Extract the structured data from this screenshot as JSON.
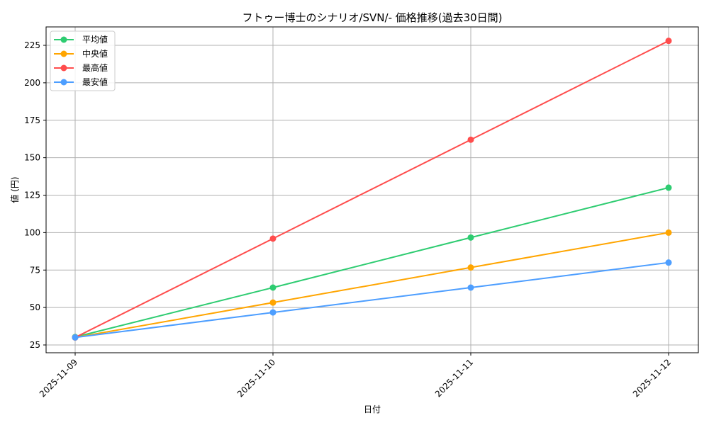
{
  "chart_data": {
    "type": "line",
    "title": "フトゥー博士のシナリオ/SVN/- 価格推移(過去30日間)",
    "xlabel": "日付",
    "ylabel": "値 (円)",
    "categories": [
      "2025-11-09",
      "2025-11-10",
      "2025-11-11",
      "2025-11-12"
    ],
    "yticks": [
      25,
      50,
      75,
      100,
      125,
      150,
      175,
      200,
      225
    ],
    "ylim": [
      19.8,
      237.3
    ],
    "grid": true,
    "legend_position": "top-left",
    "series": [
      {
        "name": "平均値",
        "color": "#2ecc71",
        "values": [
          30.3,
          63.3,
          96.7,
          130
        ]
      },
      {
        "name": "中央値",
        "color": "#ffa500",
        "values": [
          30,
          53.3,
          76.7,
          100
        ]
      },
      {
        "name": "最高値",
        "color": "#ff4d4d",
        "values": [
          30,
          96,
          162,
          228
        ]
      },
      {
        "name": "最安値",
        "color": "#4d9eff",
        "values": [
          30,
          46.7,
          63.3,
          80
        ]
      }
    ]
  }
}
